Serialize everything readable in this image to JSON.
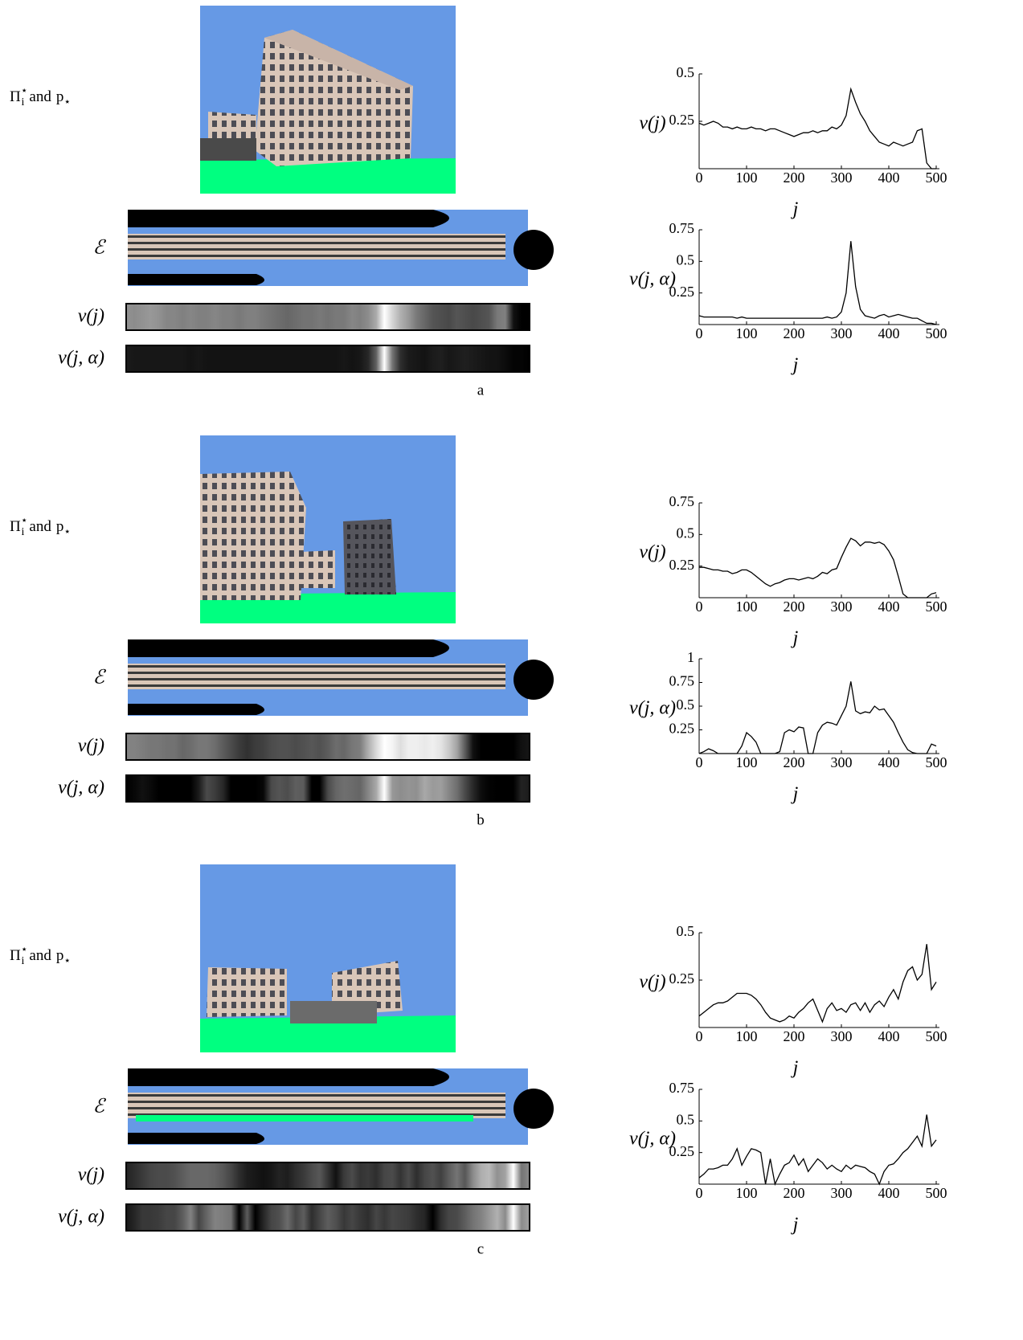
{
  "panels": [
    {
      "letter": "a",
      "image_label": {
        "pi": "Π",
        "pi_sup": "⋆",
        "pi_sub": "i",
        "and": "and",
        "p": "p",
        "p_sub": "⋆"
      },
      "e_label": "ℰ",
      "strip_labels": [
        "ν(j)",
        "ν(j, α)"
      ]
    },
    {
      "letter": "b",
      "image_label": {
        "pi": "Π",
        "pi_sup": "⋆",
        "pi_sub": "i",
        "and": "and",
        "p": "p",
        "p_sub": "⋆"
      },
      "e_label": "ℰ",
      "strip_labels": [
        "ν(j)",
        "ν(j, α)"
      ]
    },
    {
      "letter": "c",
      "image_label": {
        "pi": "Π",
        "pi_sup": "⋆",
        "pi_sub": "i",
        "and": "and",
        "p": "p",
        "p_sub": "⋆"
      },
      "e_label": "ℰ",
      "strip_labels": [
        "ν(j)",
        "ν(j, α)"
      ]
    }
  ],
  "chart_data": [
    {
      "type": "line",
      "ylabel": "ν(j)",
      "xlabel": "j",
      "color": "#000000",
      "x": [
        0,
        10,
        20,
        30,
        40,
        50,
        60,
        70,
        80,
        90,
        100,
        110,
        120,
        130,
        140,
        150,
        160,
        170,
        180,
        190,
        200,
        210,
        220,
        230,
        240,
        250,
        260,
        270,
        280,
        290,
        300,
        310,
        320,
        330,
        340,
        350,
        360,
        370,
        380,
        390,
        400,
        410,
        420,
        430,
        440,
        450,
        460,
        470,
        480,
        490,
        500
      ],
      "values": [
        0.24,
        0.23,
        0.24,
        0.25,
        0.24,
        0.22,
        0.22,
        0.21,
        0.22,
        0.21,
        0.21,
        0.22,
        0.21,
        0.21,
        0.2,
        0.21,
        0.21,
        0.2,
        0.19,
        0.18,
        0.17,
        0.18,
        0.19,
        0.19,
        0.2,
        0.19,
        0.2,
        0.2,
        0.22,
        0.21,
        0.23,
        0.28,
        0.42,
        0.35,
        0.29,
        0.25,
        0.2,
        0.17,
        0.14,
        0.13,
        0.12,
        0.14,
        0.13,
        0.12,
        0.13,
        0.14,
        0.2,
        0.21,
        0.03,
        0,
        0
      ],
      "xlim": [
        0,
        500
      ],
      "xticks": [
        0,
        100,
        200,
        300,
        400,
        500
      ],
      "ylim": [
        0,
        0.5
      ],
      "yticks": [
        0.25,
        0.5
      ]
    },
    {
      "type": "line",
      "ylabel": "ν(j, α)",
      "xlabel": "j",
      "color": "#000000",
      "x": [
        0,
        10,
        20,
        30,
        40,
        50,
        60,
        70,
        80,
        90,
        100,
        110,
        120,
        130,
        140,
        150,
        160,
        170,
        180,
        190,
        200,
        210,
        220,
        230,
        240,
        250,
        260,
        270,
        280,
        290,
        300,
        310,
        320,
        330,
        340,
        350,
        360,
        370,
        380,
        390,
        400,
        410,
        420,
        430,
        440,
        450,
        460,
        470,
        480,
        490,
        500
      ],
      "values": [
        0.07,
        0.06,
        0.06,
        0.06,
        0.06,
        0.06,
        0.06,
        0.06,
        0.05,
        0.06,
        0.05,
        0.05,
        0.05,
        0.05,
        0.05,
        0.05,
        0.05,
        0.05,
        0.05,
        0.05,
        0.05,
        0.05,
        0.05,
        0.05,
        0.05,
        0.05,
        0.05,
        0.06,
        0.05,
        0.06,
        0.1,
        0.25,
        0.66,
        0.3,
        0.12,
        0.07,
        0.06,
        0.05,
        0.07,
        0.08,
        0.06,
        0.07,
        0.08,
        0.07,
        0.06,
        0.05,
        0.05,
        0.03,
        0.01,
        0.01,
        0
      ],
      "xlim": [
        0,
        500
      ],
      "xticks": [
        0,
        100,
        200,
        300,
        400,
        500
      ],
      "ylim": [
        0,
        0.75
      ],
      "yticks": [
        0.25,
        0.5,
        0.75
      ]
    },
    {
      "type": "line",
      "ylabel": "ν(j)",
      "xlabel": "j",
      "color": "#000000",
      "x": [
        0,
        10,
        20,
        30,
        40,
        50,
        60,
        70,
        80,
        90,
        100,
        110,
        120,
        130,
        140,
        150,
        160,
        170,
        180,
        190,
        200,
        210,
        220,
        230,
        240,
        250,
        260,
        270,
        280,
        290,
        300,
        310,
        320,
        330,
        340,
        350,
        360,
        370,
        380,
        390,
        400,
        410,
        420,
        430,
        440,
        450,
        460,
        470,
        480,
        490,
        500
      ],
      "values": [
        0.24,
        0.24,
        0.23,
        0.22,
        0.22,
        0.21,
        0.21,
        0.19,
        0.2,
        0.22,
        0.22,
        0.2,
        0.17,
        0.14,
        0.11,
        0.09,
        0.11,
        0.12,
        0.14,
        0.15,
        0.15,
        0.14,
        0.15,
        0.16,
        0.15,
        0.17,
        0.2,
        0.19,
        0.22,
        0.23,
        0.32,
        0.4,
        0.47,
        0.45,
        0.41,
        0.44,
        0.44,
        0.43,
        0.44,
        0.42,
        0.37,
        0.3,
        0.17,
        0.03,
        0,
        0,
        0,
        0,
        0,
        0.03,
        0.04
      ],
      "xlim": [
        0,
        500
      ],
      "xticks": [
        0,
        100,
        200,
        300,
        400,
        500
      ],
      "ylim": [
        0,
        0.75
      ],
      "yticks": [
        0.25,
        0.5,
        0.75
      ]
    },
    {
      "type": "line",
      "ylabel": "ν(j, α)",
      "xlabel": "j",
      "color": "#000000",
      "x": [
        0,
        10,
        20,
        30,
        40,
        50,
        60,
        70,
        80,
        90,
        100,
        110,
        120,
        130,
        140,
        150,
        160,
        170,
        180,
        190,
        200,
        210,
        220,
        230,
        240,
        250,
        260,
        270,
        280,
        290,
        300,
        310,
        320,
        330,
        340,
        350,
        360,
        370,
        380,
        390,
        400,
        410,
        420,
        430,
        440,
        450,
        460,
        470,
        480,
        490,
        500
      ],
      "values": [
        0,
        0.02,
        0.05,
        0.03,
        0,
        0,
        0,
        0,
        0,
        0.08,
        0.22,
        0.18,
        0.12,
        0,
        0,
        0,
        0,
        0.02,
        0.22,
        0.25,
        0.23,
        0.28,
        0.27,
        0,
        0,
        0.22,
        0.3,
        0.33,
        0.32,
        0.3,
        0.4,
        0.5,
        0.76,
        0.45,
        0.42,
        0.44,
        0.43,
        0.5,
        0.46,
        0.47,
        0.4,
        0.33,
        0.22,
        0.12,
        0.04,
        0.01,
        0,
        0,
        0,
        0.1,
        0.08
      ],
      "xlim": [
        0,
        500
      ],
      "xticks": [
        0,
        100,
        200,
        300,
        400,
        500
      ],
      "ylim": [
        0,
        1
      ],
      "yticks": [
        0.25,
        0.5,
        0.75,
        1
      ]
    },
    {
      "type": "line",
      "ylabel": "ν(j)",
      "xlabel": "j",
      "color": "#000000",
      "x": [
        0,
        10,
        20,
        30,
        40,
        50,
        60,
        70,
        80,
        90,
        100,
        110,
        120,
        130,
        140,
        150,
        160,
        170,
        180,
        190,
        200,
        210,
        220,
        230,
        240,
        250,
        260,
        270,
        280,
        290,
        300,
        310,
        320,
        330,
        340,
        350,
        360,
        370,
        380,
        390,
        400,
        410,
        420,
        430,
        440,
        450,
        460,
        470,
        480,
        490,
        500
      ],
      "values": [
        0.06,
        0.08,
        0.1,
        0.12,
        0.13,
        0.13,
        0.14,
        0.16,
        0.18,
        0.18,
        0.18,
        0.17,
        0.15,
        0.12,
        0.08,
        0.05,
        0.04,
        0.03,
        0.04,
        0.06,
        0.05,
        0.08,
        0.1,
        0.13,
        0.15,
        0.09,
        0.03,
        0.1,
        0.13,
        0.09,
        0.1,
        0.08,
        0.12,
        0.13,
        0.09,
        0.13,
        0.08,
        0.12,
        0.14,
        0.11,
        0.16,
        0.2,
        0.15,
        0.24,
        0.3,
        0.32,
        0.25,
        0.28,
        0.44,
        0.2,
        0.24
      ],
      "xlim": [
        0,
        500
      ],
      "xticks": [
        0,
        100,
        200,
        300,
        400,
        500
      ],
      "ylim": [
        0,
        0.5
      ],
      "yticks": [
        0.25,
        0.5
      ]
    },
    {
      "type": "line",
      "ylabel": "ν(j, α)",
      "xlabel": "j",
      "color": "#000000",
      "x": [
        0,
        10,
        20,
        30,
        40,
        50,
        60,
        70,
        80,
        90,
        100,
        110,
        120,
        130,
        140,
        150,
        160,
        170,
        180,
        190,
        200,
        210,
        220,
        230,
        240,
        250,
        260,
        270,
        280,
        290,
        300,
        310,
        320,
        330,
        340,
        350,
        360,
        370,
        380,
        390,
        400,
        410,
        420,
        430,
        440,
        450,
        460,
        470,
        480,
        490,
        500
      ],
      "values": [
        0.05,
        0.08,
        0.12,
        0.12,
        0.13,
        0.15,
        0.15,
        0.2,
        0.28,
        0.15,
        0.22,
        0.28,
        0.27,
        0.25,
        0,
        0.2,
        0,
        0.08,
        0.15,
        0.17,
        0.23,
        0.15,
        0.2,
        0.1,
        0.15,
        0.2,
        0.17,
        0.12,
        0.15,
        0.12,
        0.1,
        0.15,
        0.12,
        0.15,
        0.14,
        0.13,
        0.1,
        0.08,
        0,
        0.1,
        0.15,
        0.16,
        0.2,
        0.25,
        0.28,
        0.33,
        0.38,
        0.3,
        0.55,
        0.3,
        0.35
      ],
      "xlim": [
        0,
        500
      ],
      "xticks": [
        0,
        100,
        200,
        300,
        400,
        500
      ],
      "ylim": [
        0,
        0.75
      ],
      "yticks": [
        0.25,
        0.5,
        0.75
      ]
    }
  ]
}
